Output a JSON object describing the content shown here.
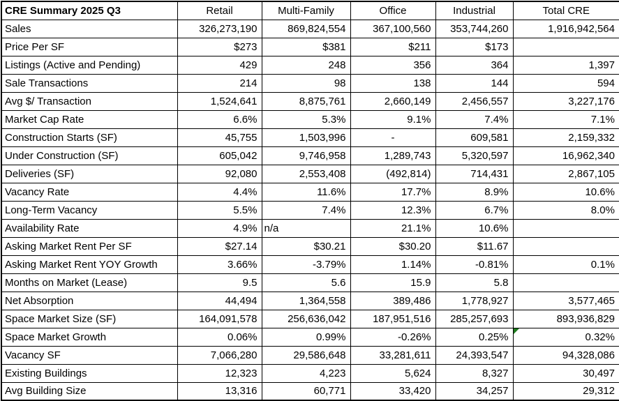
{
  "chart_data": {
    "type": "table",
    "title": "CRE Summary 2025 Q3",
    "columns": [
      "Retail",
      "Multi-Family",
      "Office",
      "Industrial",
      "Total CRE"
    ],
    "rows": [
      {
        "label": "Sales",
        "values": [
          "326,273,190",
          "869,824,554",
          "367,100,560",
          "353,744,260",
          "1,916,942,564"
        ]
      },
      {
        "label": "Price Per SF",
        "values": [
          "$273",
          "$381",
          "$211",
          "$173",
          ""
        ]
      },
      {
        "label": "Listings (Active and Pending)",
        "values": [
          "429",
          "248",
          "356",
          "364",
          "1,397"
        ]
      },
      {
        "label": "Sale Transactions",
        "values": [
          "214",
          "98",
          "138",
          "144",
          "594"
        ]
      },
      {
        "label": "Avg $/ Transaction",
        "values": [
          "1,524,641",
          "8,875,761",
          "2,660,149",
          "2,456,557",
          "3,227,176"
        ]
      },
      {
        "label": "Market Cap Rate",
        "values": [
          "6.6%",
          "5.3%",
          "9.1%",
          "7.4%",
          "7.1%"
        ]
      },
      {
        "label": "Construction Starts (SF)",
        "values": [
          "45,755",
          "1,503,996",
          "-",
          "609,581",
          "2,159,332"
        ]
      },
      {
        "label": "Under Construction (SF)",
        "values": [
          "605,042",
          "9,746,958",
          "1,289,743",
          "5,320,597",
          "16,962,340"
        ]
      },
      {
        "label": "Deliveries (SF)",
        "values": [
          "92,080",
          "2,553,408",
          "(492,814)",
          "714,431",
          "2,867,105"
        ]
      },
      {
        "label": "Vacancy Rate",
        "values": [
          "4.4%",
          "11.6%",
          "17.7%",
          "8.9%",
          "10.6%"
        ]
      },
      {
        "label": "Long-Term Vacancy",
        "values": [
          "5.5%",
          "7.4%",
          "12.3%",
          "6.7%",
          "8.0%"
        ]
      },
      {
        "label": "Availability Rate",
        "values": [
          "4.9%",
          "n/a",
          "21.1%",
          "10.6%",
          ""
        ]
      },
      {
        "label": "Asking Market Rent Per SF",
        "values": [
          "$27.14",
          "$30.21",
          "$30.20",
          "$11.67",
          ""
        ]
      },
      {
        "label": "Asking Market Rent YOY Growth",
        "values": [
          "3.66%",
          "-3.79%",
          "1.14%",
          "-0.81%",
          "0.1%"
        ]
      },
      {
        "label": "Months on Market (Lease)",
        "values": [
          "9.5",
          "5.6",
          "15.9",
          "5.8",
          ""
        ]
      },
      {
        "label": "Net Absorption",
        "values": [
          "44,494",
          "1,364,558",
          "389,486",
          "1,778,927",
          "3,577,465"
        ]
      },
      {
        "label": "Space Market Size (SF)",
        "values": [
          "164,091,578",
          "256,636,042",
          "187,951,516",
          "285,257,693",
          "893,936,829"
        ]
      },
      {
        "label": "Space Market Growth",
        "values": [
          "0.06%",
          "0.99%",
          "-0.26%",
          "0.25%",
          "0.32%"
        ],
        "error_col": 4
      },
      {
        "label": "Vacancy SF",
        "values": [
          "7,066,280",
          "29,586,648",
          "33,281,611",
          "24,393,547",
          "94,328,086"
        ]
      },
      {
        "label": "Existing Buildings",
        "values": [
          "12,323",
          "4,223",
          "5,624",
          "8,327",
          "30,497"
        ]
      },
      {
        "label": "Avg Building Size",
        "values": [
          "13,316",
          "60,771",
          "33,420",
          "34,257",
          "29,312"
        ]
      }
    ],
    "layout": {
      "grid": "on",
      "header_row_bold_title": true,
      "column_headers_centered": true
    }
  },
  "error_indicator": {
    "row": "Space Market Growth",
    "column": "Total CRE",
    "corner": "top-left",
    "color": "#1E7B1E"
  },
  "colors": {
    "border": "#000000",
    "background": "#FFFFFF",
    "text": "#000000",
    "error_triangle": "#1E7B1E"
  }
}
